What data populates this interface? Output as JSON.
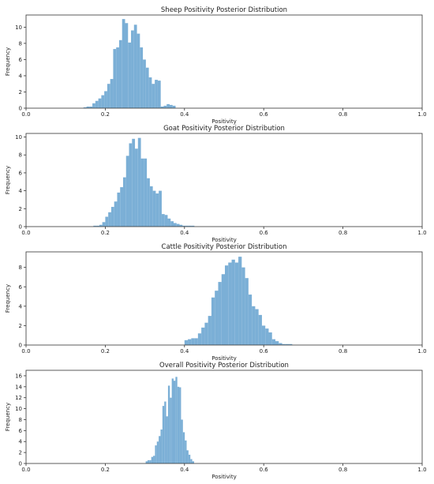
{
  "chart_data": [
    {
      "type": "bar",
      "title": "Sheep Positivity Posterior Distribution",
      "xlabel": "Positivity",
      "ylabel": "Frequency",
      "xlim": [
        0.0,
        1.0
      ],
      "ylim": [
        0,
        11.5
      ],
      "xticks": [
        "0.0",
        "0.2",
        "0.4",
        "0.6",
        "0.8",
        "1.0"
      ],
      "yticks": [
        "0",
        "2",
        "4",
        "6",
        "8",
        "10"
      ],
      "bin_start": 0.145,
      "bin_width": 0.0075,
      "values": [
        0.1,
        0.2,
        0.2,
        0.6,
        0.9,
        1.2,
        1.6,
        2.1,
        3.0,
        3.6,
        7.3,
        7.5,
        8.4,
        11.0,
        10.5,
        8.1,
        9.6,
        10.3,
        9.2,
        7.5,
        6.0,
        5.0,
        3.8,
        3.0,
        3.5,
        3.4,
        0.2,
        0.3,
        0.5,
        0.4,
        0.3
      ],
      "color": "#7bafd6",
      "grid": false
    },
    {
      "type": "bar",
      "title": "Goat Positivity Posterior Distribution",
      "xlabel": "Positivity",
      "ylabel": "Frequency",
      "xlim": [
        0.0,
        1.0
      ],
      "ylim": [
        0,
        10.4
      ],
      "xticks": [
        "0.0",
        "0.2",
        "0.4",
        "0.6",
        "0.8",
        "1.0"
      ],
      "yticks": [
        "0",
        "2",
        "4",
        "6",
        "8",
        "10"
      ],
      "bin_start": 0.17,
      "bin_width": 0.0075,
      "values": [
        0.1,
        0.1,
        0.2,
        0.5,
        1.1,
        1.6,
        2.2,
        2.8,
        3.8,
        4.4,
        5.5,
        7.9,
        9.3,
        9.8,
        8.7,
        9.9,
        7.6,
        7.6,
        5.4,
        4.5,
        4.0,
        3.7,
        4.0,
        1.4,
        1.3,
        0.9,
        0.6,
        0.4,
        0.3,
        0.2,
        0.1,
        0.1,
        0.1,
        0.1
      ],
      "color": "#7bafd6",
      "grid": false
    },
    {
      "type": "bar",
      "title": "Cattle Positivity Posterior Distribution",
      "xlabel": "Positivity",
      "ylabel": "Frequency",
      "xlim": [
        0.0,
        1.0
      ],
      "ylim": [
        0,
        9.6
      ],
      "xticks": [
        "0.0",
        "0.2",
        "0.4",
        "0.6",
        "0.8",
        "1.0"
      ],
      "yticks": [
        "0",
        "2",
        "4",
        "6",
        "8"
      ],
      "bin_start": 0.4,
      "bin_width": 0.0085,
      "values": [
        0.5,
        0.6,
        0.7,
        0.7,
        1.2,
        1.8,
        2.3,
        3.0,
        4.9,
        5.6,
        6.5,
        7.3,
        8.2,
        8.5,
        8.8,
        8.5,
        9.1,
        8.0,
        6.9,
        5.2,
        4.0,
        3.7,
        3.1,
        2.0,
        1.7,
        1.3,
        0.6,
        0.4,
        0.2,
        0.1,
        0.1,
        0.1
      ],
      "color": "#7bafd6",
      "grid": false
    },
    {
      "type": "bar",
      "title": "Overall Positivity Posterior Distribution",
      "xlabel": "Positivity",
      "ylabel": "Frequency",
      "xlim": [
        0.0,
        1.0
      ],
      "ylim": [
        0,
        17
      ],
      "xticks": [
        "0.0",
        "0.2",
        "0.4",
        "0.6",
        "0.8",
        "1.0"
      ],
      "yticks": [
        "0",
        "2",
        "4",
        "6",
        "8",
        "10",
        "12",
        "14",
        "16"
      ],
      "bin_start": 0.302,
      "bin_width": 0.0047,
      "values": [
        0.4,
        0.6,
        0.6,
        1.2,
        1.4,
        3.3,
        4.0,
        5.0,
        6.2,
        10.5,
        11.3,
        8.6,
        14.2,
        12.0,
        15.5,
        15.1,
        15.8,
        14.0,
        13.9,
        8.0,
        5.7,
        4.2,
        2.4,
        1.6,
        0.8,
        0.4
      ],
      "color": "#7bafd6",
      "grid": false
    }
  ]
}
